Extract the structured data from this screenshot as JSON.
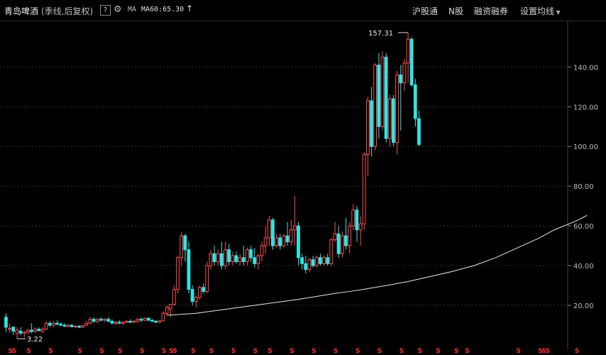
{
  "header": {
    "stock_name": "青岛啤酒",
    "period": "(季线,后复权)",
    "help_label": "?",
    "ma_label": "MA",
    "ma60_label": "MA60:65.30",
    "menu": [
      "沪股通",
      "N股",
      "融资融券",
      "设置均线"
    ]
  },
  "colors": {
    "up": "#ff4f4f",
    "down": "#2fe6e6",
    "ma": "#e8e8e8",
    "grid": "#333333",
    "marker": "#ff3030"
  },
  "chart_data": {
    "type": "candlestick",
    "title": "",
    "ylim": [
      0,
      163
    ],
    "y_ticks": [
      20,
      40,
      60,
      80,
      100,
      120,
      140
    ],
    "y_tick_labels": [
      "20.00",
      "40.00",
      "60.00",
      "80.00",
      "100.00",
      "120.00",
      "140.00"
    ],
    "high_label": "157.31",
    "low_label": "3.22",
    "dividend_marker": "S",
    "candles": [
      [
        14.0,
        16.0,
        6.5,
        9.0
      ],
      [
        8.0,
        11.0,
        6.0,
        8.5
      ],
      [
        9.0,
        9.5,
        5.0,
        7.0
      ],
      [
        6.0,
        9.0,
        3.2,
        7.5
      ],
      [
        7.0,
        9.0,
        5.0,
        6.0
      ],
      [
        6.0,
        7.0,
        4.0,
        6.5
      ],
      [
        6.5,
        8.0,
        5.5,
        7.5
      ],
      [
        7.5,
        11.0,
        6.0,
        6.8
      ],
      [
        7.0,
        9.0,
        6.0,
        8.0
      ],
      [
        8.0,
        9.0,
        7.0,
        7.2
      ],
      [
        7.0,
        9.0,
        6.0,
        8.0
      ],
      [
        8.0,
        12.0,
        7.5,
        11.0
      ],
      [
        11.0,
        12.0,
        9.0,
        10.0
      ],
      [
        10.0,
        12.0,
        9.0,
        11.0
      ],
      [
        11.0,
        12.5,
        10.0,
        10.5
      ],
      [
        10.5,
        11.5,
        9.5,
        10.0
      ],
      [
        10.0,
        11.0,
        9.0,
        9.5
      ],
      [
        9.5,
        10.5,
        9.0,
        10.0
      ],
      [
        10.0,
        10.5,
        9.0,
        9.2
      ],
      [
        9.2,
        10.0,
        8.5,
        9.5
      ],
      [
        9.5,
        10.0,
        8.5,
        9.0
      ],
      [
        9.0,
        10.0,
        8.5,
        9.8
      ],
      [
        10.0,
        12.0,
        9.5,
        11.0
      ],
      [
        11.0,
        14.0,
        10.5,
        13.0
      ],
      [
        13.0,
        14.0,
        11.0,
        12.0
      ],
      [
        12.0,
        13.5,
        11.0,
        13.0
      ],
      [
        13.0,
        14.0,
        12.0,
        12.5
      ],
      [
        12.5,
        13.5,
        11.5,
        13.0
      ],
      [
        13.0,
        14.0,
        11.5,
        12.0
      ],
      [
        12.0,
        13.0,
        10.5,
        11.0
      ],
      [
        11.0,
        12.0,
        10.0,
        11.5
      ],
      [
        11.5,
        12.5,
        10.5,
        11.0
      ],
      [
        11.0,
        12.0,
        10.0,
        11.5
      ],
      [
        11.5,
        12.5,
        11.0,
        12.0
      ],
      [
        12.0,
        13.0,
        11.0,
        11.5
      ],
      [
        11.5,
        12.5,
        11.0,
        12.0
      ],
      [
        12.0,
        13.5,
        11.0,
        13.0
      ],
      [
        13.0,
        14.0,
        11.5,
        12.5
      ],
      [
        12.5,
        14.0,
        12.0,
        13.5
      ],
      [
        13.5,
        14.0,
        12.0,
        12.5
      ],
      [
        12.5,
        13.0,
        11.5,
        12.0
      ],
      [
        12.0,
        12.5,
        11.0,
        11.5
      ],
      [
        11.5,
        12.5,
        11.0,
        12.2
      ],
      [
        12.2,
        17.0,
        12.0,
        16.0
      ],
      [
        16.0,
        20.0,
        15.0,
        19.0
      ],
      [
        18.0,
        20.0,
        14.0,
        20.5
      ],
      [
        20.5,
        30.0,
        20.0,
        28.0
      ],
      [
        28.0,
        45.0,
        26.0,
        44.0
      ],
      [
        44.0,
        57.0,
        40.0,
        55.0
      ],
      [
        55.0,
        56.0,
        42.0,
        48.0
      ],
      [
        48.0,
        52.0,
        26.0,
        28.0
      ],
      [
        28.0,
        30.0,
        20.0,
        22.0
      ],
      [
        22.0,
        25.0,
        19.0,
        24.0
      ],
      [
        24.0,
        30.0,
        23.0,
        29.0
      ],
      [
        29.0,
        31.0,
        26.0,
        27.0
      ],
      [
        27.0,
        42.0,
        26.0,
        40.0
      ],
      [
        40.0,
        48.0,
        38.0,
        46.0
      ],
      [
        46.0,
        50.0,
        40.0,
        42.0
      ],
      [
        42.0,
        48.0,
        40.0,
        46.0
      ],
      [
        46.0,
        52.0,
        38.0,
        40.0
      ],
      [
        40.0,
        52.0,
        38.0,
        48.0
      ],
      [
        48.0,
        51.0,
        40.0,
        42.0
      ],
      [
        42.0,
        47.0,
        40.0,
        45.0
      ],
      [
        45.0,
        47.0,
        41.0,
        42.0
      ],
      [
        42.0,
        46.0,
        40.0,
        44.0
      ],
      [
        44.0,
        50.0,
        40.0,
        42.0
      ],
      [
        42.0,
        49.0,
        40.0,
        48.0
      ],
      [
        48.0,
        50.0,
        42.0,
        44.0
      ],
      [
        44.0,
        49.0,
        39.0,
        41.0
      ],
      [
        41.0,
        46.0,
        38.0,
        45.0
      ],
      [
        45.0,
        52.0,
        42.0,
        50.0
      ],
      [
        50.0,
        60.0,
        46.0,
        54.0
      ],
      [
        54.0,
        65.0,
        50.0,
        63.0
      ],
      [
        63.0,
        64.0,
        48.0,
        50.0
      ],
      [
        50.0,
        56.0,
        49.0,
        54.0
      ],
      [
        54.0,
        56.0,
        48.0,
        50.0
      ],
      [
        50.0,
        56.0,
        49.0,
        55.0
      ],
      [
        55.0,
        62.0,
        50.0,
        52.0
      ],
      [
        52.0,
        63.0,
        50.0,
        58.0
      ],
      [
        58.0,
        75.0,
        50.0,
        60.0
      ],
      [
        60.0,
        62.0,
        40.0,
        44.0
      ],
      [
        44.0,
        46.0,
        38.0,
        41.0
      ],
      [
        41.0,
        45.0,
        36.0,
        38.0
      ],
      [
        38.0,
        44.0,
        37.0,
        43.0
      ],
      [
        43.0,
        45.0,
        39.0,
        40.0
      ],
      [
        40.0,
        45.0,
        39.0,
        44.0
      ],
      [
        44.0,
        46.0,
        40.0,
        41.0
      ],
      [
        41.0,
        45.0,
        40.0,
        44.0
      ],
      [
        44.0,
        46.0,
        40.0,
        41.0
      ],
      [
        41.0,
        54.0,
        40.0,
        53.0
      ],
      [
        53.0,
        62.0,
        52.0,
        56.0
      ],
      [
        56.0,
        60.0,
        44.0,
        46.0
      ],
      [
        46.0,
        57.0,
        44.0,
        55.0
      ],
      [
        55.0,
        64.0,
        48.0,
        50.0
      ],
      [
        50.0,
        62.0,
        46.0,
        60.0
      ],
      [
        60.0,
        71.0,
        58.0,
        68.0
      ],
      [
        68.0,
        70.0,
        52.0,
        58.0
      ],
      [
        58.0,
        65.0,
        50.0,
        61.0
      ],
      [
        61.0,
        97.0,
        58.0,
        96.0
      ],
      [
        96.0,
        125.0,
        85.0,
        123.0
      ],
      [
        123.0,
        130.0,
        95.0,
        100.0
      ],
      [
        100.0,
        142.0,
        98.0,
        141.0
      ],
      [
        141.0,
        147.0,
        104.0,
        110.0
      ],
      [
        110.0,
        148.0,
        108.0,
        145.0
      ],
      [
        145.0,
        147.0,
        102.0,
        104.0
      ],
      [
        104.0,
        126.0,
        100.0,
        124.0
      ],
      [
        124.0,
        126.0,
        100.0,
        102.0
      ],
      [
        102.0,
        138.0,
        96.0,
        136.0
      ],
      [
        136.0,
        141.0,
        108.0,
        132.0
      ],
      [
        132.0,
        144.0,
        128.0,
        142.0
      ],
      [
        142.0,
        157.3,
        132.0,
        154.0
      ],
      [
        154.0,
        155.0,
        130.0,
        131.0
      ],
      [
        131.0,
        134.0,
        110.0,
        114.0
      ],
      [
        114.0,
        118.0,
        100.0,
        101.0
      ]
    ],
    "ma60_points": [
      [
        44,
        15.0
      ],
      [
        52,
        16.0
      ],
      [
        60,
        18.0
      ],
      [
        70,
        20.5
      ],
      [
        80,
        23.0
      ],
      [
        90,
        26.0
      ],
      [
        96,
        27.5
      ],
      [
        104,
        30.0
      ],
      [
        110,
        32.0
      ],
      [
        116,
        34.5
      ],
      [
        122,
        37.0
      ],
      [
        128,
        40.0
      ],
      [
        134,
        44.0
      ],
      [
        140,
        49.0
      ],
      [
        146,
        54.0
      ],
      [
        150,
        58.0
      ],
      [
        156,
        62.5
      ],
      [
        159,
        65.3
      ]
    ],
    "dividend_indices": [
      1,
      2,
      6,
      12,
      20,
      26,
      31,
      37,
      43,
      45,
      46,
      51,
      56,
      62,
      68,
      72,
      78,
      84,
      90,
      96,
      102,
      108,
      113,
      118,
      123,
      126,
      140,
      146,
      147,
      148,
      156
    ]
  }
}
